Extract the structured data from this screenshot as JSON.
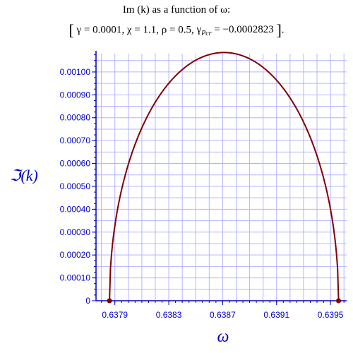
{
  "chart_data": {
    "type": "line",
    "title_line1": "Im (k) as a function of ω:",
    "title_line2": {
      "gamma": "γ = 0.0001,",
      "chi": "χ = 1.1,",
      "rho": "ρ = 0.5,",
      "gamma_pcr_symbol": "γ",
      "gamma_pcr_sub": "Pcr",
      "gamma_pcr_value": "= −0.0002823"
    },
    "xlabel": "ω",
    "ylabel": "ℑ(k)",
    "xlim": [
      0.63776,
      0.63962
    ],
    "ylim": [
      0,
      0.00108
    ],
    "x_ticks": [
      {
        "value": 0.6379,
        "label": "0.6379"
      },
      {
        "value": 0.6383,
        "label": "0.6383"
      },
      {
        "value": 0.6387,
        "label": "0.6387"
      },
      {
        "value": 0.6391,
        "label": "0.6391"
      },
      {
        "value": 0.6395,
        "label": "0.6395"
      }
    ],
    "y_ticks": [
      {
        "value": 0,
        "label": "0"
      },
      {
        "value": 0.0001,
        "label": "0.00010"
      },
      {
        "value": 0.0002,
        "label": "0.00020"
      },
      {
        "value": 0.0003,
        "label": "0.00030"
      },
      {
        "value": 0.0004,
        "label": "0.00040"
      },
      {
        "value": 0.0005,
        "label": "0.00050"
      },
      {
        "value": 0.0006,
        "label": "0.00060"
      },
      {
        "value": 0.0007,
        "label": "0.00070"
      },
      {
        "value": 0.0008,
        "label": "0.00080"
      },
      {
        "value": 0.0009,
        "label": "0.00090"
      },
      {
        "value": 0.001,
        "label": "0.00100"
      }
    ],
    "grid": true,
    "curve": {
      "omega_start": 0.63786,
      "omega_end": 0.63956,
      "omega_peak": 0.63871,
      "peak_value": 0.001085,
      "shape": "semi-ellipse"
    },
    "endpoints": [
      {
        "x": 0.63786,
        "y": 0
      },
      {
        "x": 0.63956,
        "y": 0
      }
    ],
    "colors": {
      "curve": "#800000",
      "grid": "#b4b4ff",
      "axis": "#0000cc",
      "endpoint": "#800000"
    }
  }
}
